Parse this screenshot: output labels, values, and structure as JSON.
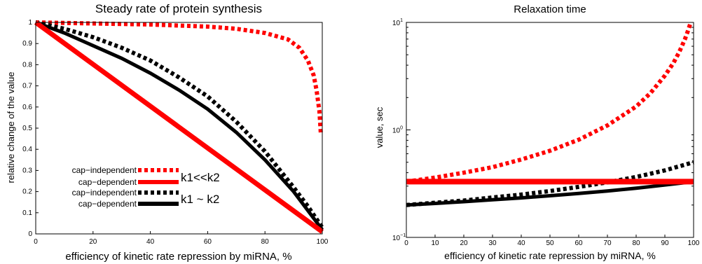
{
  "colors": {
    "red": "#ff0000",
    "black": "#000000"
  },
  "chart_data": [
    {
      "type": "line",
      "title": "Steady rate of protein synthesis",
      "xlabel": "efficiency of kinetic rate repression by miRNA, %",
      "ylabel": "relative change of the value",
      "xlim": [
        0,
        100
      ],
      "ylim": [
        0,
        1
      ],
      "x_ticks": [
        "0",
        "20",
        "40",
        "60",
        "80",
        "100"
      ],
      "y_ticks": [
        "0",
        "0.1",
        "0.2",
        "0.3",
        "0.4",
        "0.5",
        "0.6",
        "0.7",
        "0.8",
        "0.9",
        "1"
      ],
      "grid": false,
      "legend_groups": [
        {
          "label": "k1<<k2",
          "color": "#ff0000",
          "entries": [
            {
              "label": "cap−independent",
              "style": "dotted"
            },
            {
              "label": "cap−dependent",
              "style": "solid"
            }
          ]
        },
        {
          "label": "k1 ~ k2",
          "color": "#000000",
          "entries": [
            {
              "label": "cap−independent",
              "style": "dotted"
            },
            {
              "label": "cap−dependent",
              "style": "solid"
            }
          ]
        }
      ],
      "series": [
        {
          "key": "red-cap-independent",
          "color": "#ff0000",
          "style": "dotted",
          "x": [
            0,
            20,
            40,
            60,
            70,
            80,
            88,
            92,
            95,
            97,
            98,
            99,
            99.5
          ],
          "y": [
            1.0,
            0.995,
            0.99,
            0.98,
            0.97,
            0.95,
            0.92,
            0.88,
            0.82,
            0.75,
            0.68,
            0.58,
            0.47
          ]
        },
        {
          "key": "red-cap-dependent",
          "color": "#ff0000",
          "style": "solid",
          "x": [
            0,
            100
          ],
          "y": [
            1.0,
            0.01
          ]
        },
        {
          "key": "black-cap-independent",
          "color": "#000000",
          "style": "dotted",
          "x": [
            0,
            10,
            20,
            30,
            40,
            50,
            60,
            70,
            80,
            90,
            95,
            100
          ],
          "y": [
            1.0,
            0.97,
            0.93,
            0.88,
            0.82,
            0.74,
            0.65,
            0.53,
            0.39,
            0.22,
            0.13,
            0.03
          ]
        },
        {
          "key": "black-cap-dependent",
          "color": "#000000",
          "style": "solid",
          "x": [
            0,
            10,
            20,
            30,
            40,
            50,
            60,
            70,
            80,
            90,
            95,
            100
          ],
          "y": [
            1.0,
            0.95,
            0.89,
            0.83,
            0.76,
            0.68,
            0.59,
            0.48,
            0.35,
            0.2,
            0.11,
            0.02
          ]
        }
      ]
    },
    {
      "type": "line",
      "title": "Relaxation time",
      "xlabel": "efficiency of kinetic rate repression by miRNA, %",
      "ylabel": "value, sec",
      "yscale": "log",
      "xlim": [
        0,
        100
      ],
      "ylim": [
        0.1,
        10
      ],
      "x_ticks": [
        "0",
        "10",
        "20",
        "30",
        "40",
        "50",
        "60",
        "70",
        "80",
        "90",
        "100"
      ],
      "y_ticks": [
        {
          "base": "10",
          "exp": "−1"
        },
        {
          "base": "10",
          "exp": "0"
        },
        {
          "base": "10",
          "exp": "1"
        }
      ],
      "grid": false,
      "series": [
        {
          "key": "red-cap-independent",
          "color": "#ff0000",
          "style": "dotted",
          "x": [
            0,
            10,
            20,
            30,
            40,
            50,
            60,
            70,
            80,
            85,
            90,
            93,
            95,
            97,
            98,
            99
          ],
          "y": [
            0.33,
            0.36,
            0.4,
            0.45,
            0.53,
            0.64,
            0.81,
            1.1,
            1.65,
            2.2,
            3.2,
            4.2,
            5.3,
            7.0,
            8.3,
            10.0
          ]
        },
        {
          "key": "red-cap-dependent",
          "color": "#ff0000",
          "style": "solid",
          "x": [
            0,
            100
          ],
          "y": [
            0.33,
            0.33
          ]
        },
        {
          "key": "black-cap-independent",
          "color": "#000000",
          "style": "dotted",
          "x": [
            0,
            10,
            20,
            30,
            40,
            50,
            60,
            70,
            80,
            90,
            100
          ],
          "y": [
            0.2,
            0.21,
            0.22,
            0.235,
            0.25,
            0.27,
            0.295,
            0.325,
            0.365,
            0.42,
            0.5
          ]
        },
        {
          "key": "black-cap-dependent",
          "color": "#000000",
          "style": "solid",
          "x": [
            0,
            10,
            20,
            30,
            40,
            50,
            60,
            70,
            80,
            90,
            100
          ],
          "y": [
            0.2,
            0.207,
            0.215,
            0.224,
            0.233,
            0.244,
            0.256,
            0.27,
            0.287,
            0.307,
            0.33
          ]
        }
      ]
    }
  ]
}
